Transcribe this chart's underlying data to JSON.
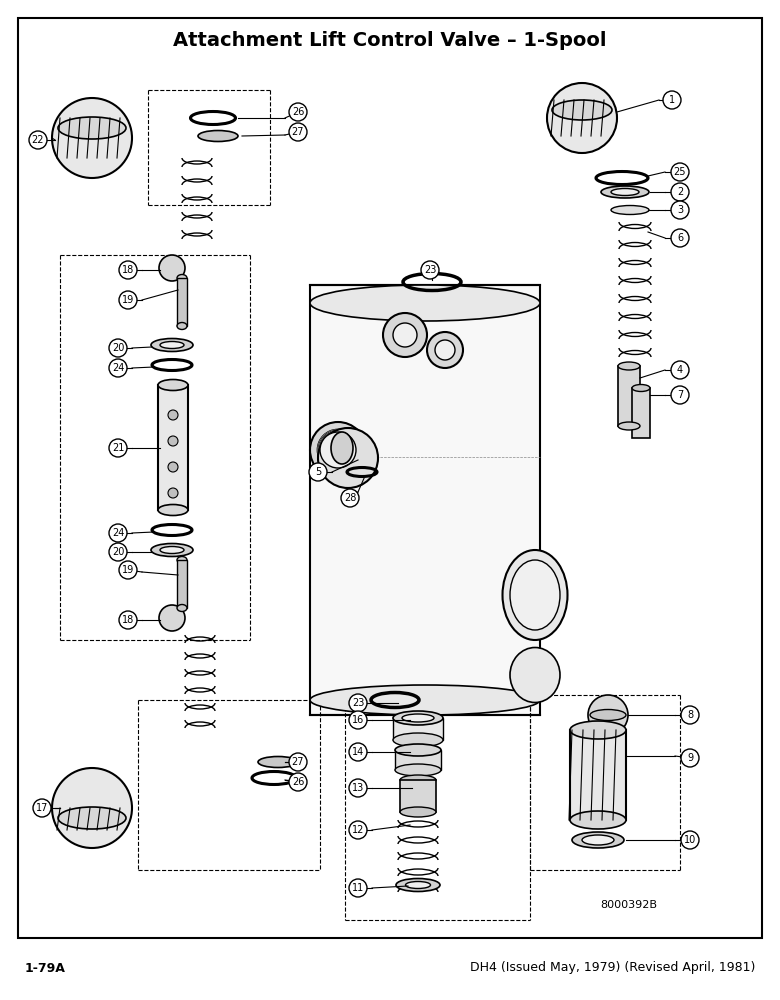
{
  "title": "Attachment Lift Control Valve – 1-Spool",
  "title_fontsize": 14,
  "title_bold": true,
  "footer_left": "1-79A",
  "footer_right": "DH4 (Issued May, 1979) (Revised April, 1981)",
  "footer_fontsize": 9,
  "part_number": "8000392B",
  "background_color": "#ffffff",
  "border_color": "#000000",
  "fig_width": 7.8,
  "fig_height": 10.0
}
